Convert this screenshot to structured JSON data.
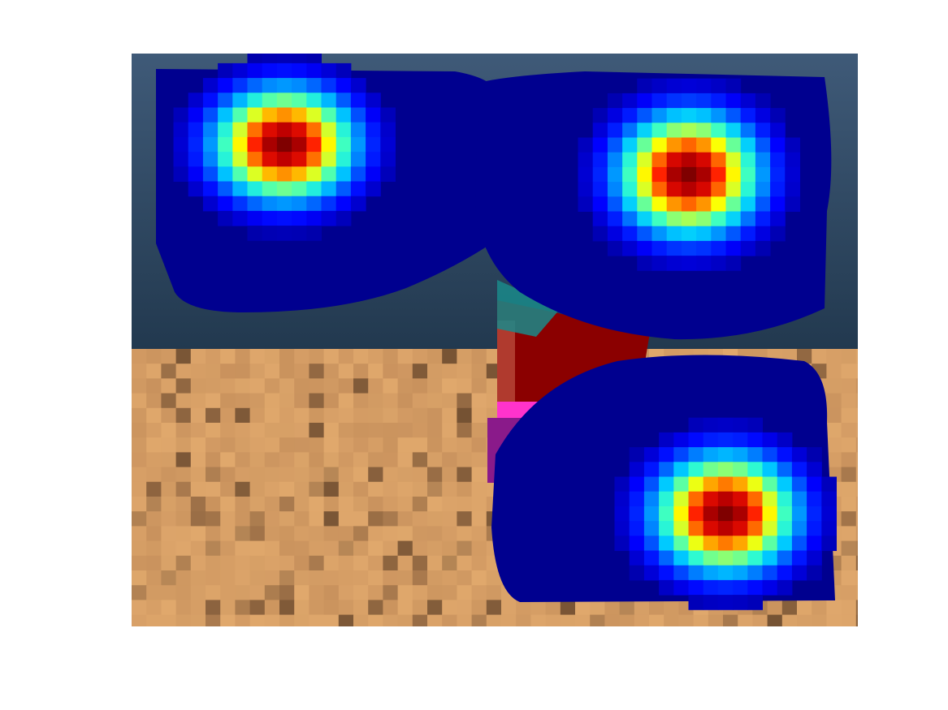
{
  "figure": {
    "background": "#ffffff",
    "colormap_name": "jet",
    "colormap": [
      "#00007f",
      "#0000ff",
      "#0066ff",
      "#00ccff",
      "#33ffcc",
      "#99ff66",
      "#ffff00",
      "#ff9900",
      "#ff2200",
      "#cc0000",
      "#7f0000"
    ],
    "blob_base_color": "#00008f",
    "hotspot_count": 3,
    "scene": {
      "sky_top_color": "#3f5a78",
      "sky_bottom_color": "#22394f",
      "sand_light_color": "#e0a86c",
      "sand_mid_color": "#c9925d",
      "sand_dark_color": "#6b4a2e",
      "object_colors": [
        "#8b0000",
        "#b03a2e",
        "#1a8a8a",
        "#ff33cc",
        "#8a1a8a"
      ]
    }
  }
}
